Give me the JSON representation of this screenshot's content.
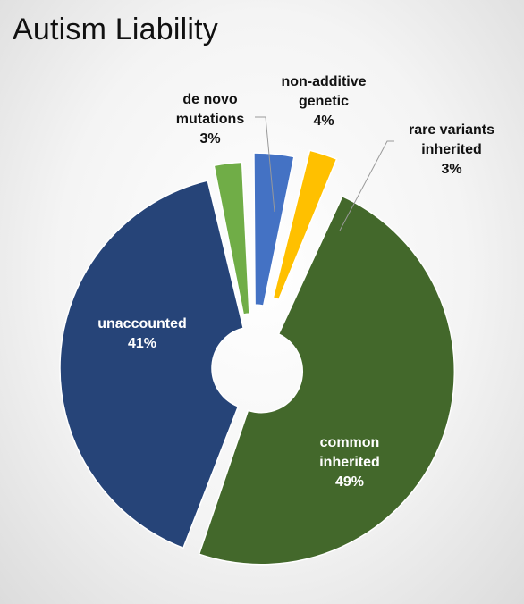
{
  "chart_data": {
    "type": "pie",
    "title": "Autism Liability",
    "slices": [
      {
        "name": "unaccounted",
        "label_lines": [
          "unaccounted",
          "41%"
        ],
        "value": 41,
        "color": "#264478",
        "label_color": "#ffffff"
      },
      {
        "name": "de novo mutations",
        "label_lines": [
          "de novo",
          "mutations",
          "3%"
        ],
        "value": 3,
        "color": "#70ad47",
        "label_color": "#111111"
      },
      {
        "name": "non-additive genetic",
        "label_lines": [
          "non-additive",
          "genetic",
          "4%"
        ],
        "value": 4,
        "color": "#4472c4",
        "label_color": "#111111"
      },
      {
        "name": "rare variants inherited",
        "label_lines": [
          "rare variants",
          "inherited",
          "3%"
        ],
        "value": 3,
        "color": "#ffc000",
        "label_color": "#111111"
      },
      {
        "name": "common inherited",
        "label_lines": [
          "common",
          "inherited",
          "49%"
        ],
        "value": 49,
        "color": "#43682b",
        "label_color": "#ffffff"
      }
    ],
    "style": "exploded doughnut",
    "legend": "none"
  }
}
